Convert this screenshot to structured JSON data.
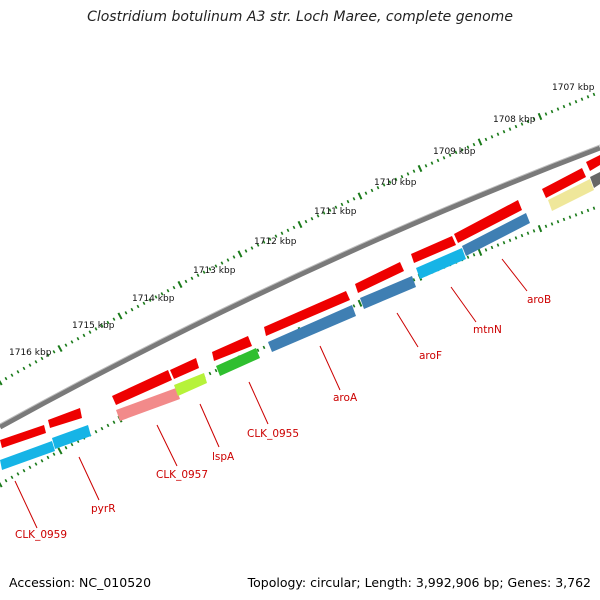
{
  "title": "Clostridium botulinum A3 str. Loch Maree, complete genome",
  "footer": {
    "accession": "Accession: NC_010520",
    "topology": "Topology: circular; Length: 3,992,906 bp; Genes: 3,762"
  },
  "map": {
    "scale_labels": [
      "1707 kbp",
      "1708 kbp",
      "1709 kbp",
      "1710 kbp",
      "1711 kbp",
      "1712 kbp",
      "1713 kbp",
      "1714 kbp",
      "1715 kbp",
      "1716 kbp"
    ],
    "gene_labels": [
      "CLK_0959",
      "pyrR",
      "CLK_0957",
      "lspA",
      "CLK_0955",
      "aroA",
      "aroF",
      "mtnN",
      "aroB"
    ],
    "colors": {
      "gene_strand": "#ee0000",
      "cds_cyan": "#16b4e6",
      "cds_steelblue": "#3f7fb3",
      "cds_salmon": "#f28a8a",
      "cds_green": "#2fbf2f",
      "cds_lime": "#b6f23a",
      "cds_yellow": "#efe79a",
      "backbone": "#7a7a7a",
      "ticks": "#1a7a1a",
      "label": "#cc0000"
    }
  }
}
